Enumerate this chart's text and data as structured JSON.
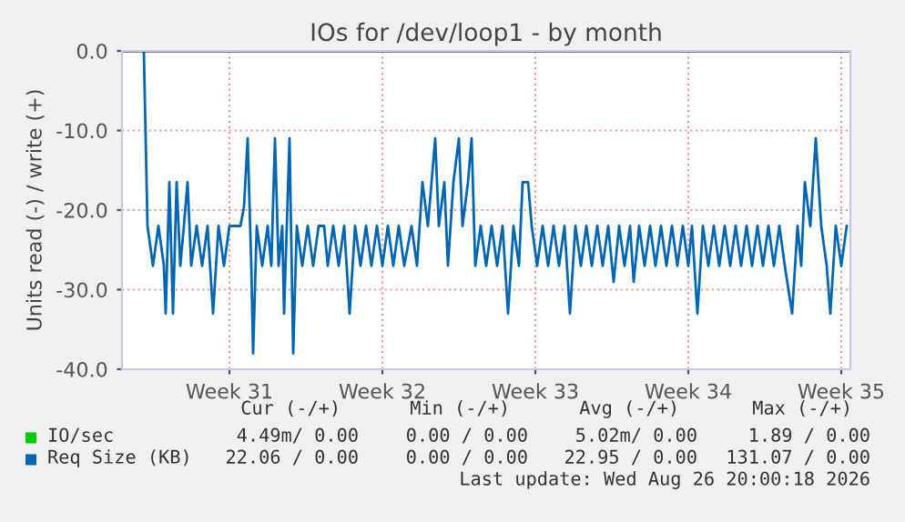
{
  "chart_data": {
    "type": "line",
    "title": "IOs for /dev/loop1 - by month",
    "ylabel": "Units read (-) / write (+)",
    "xlim": [
      "2026-07-22T02:00",
      "2026-08-24T10:00"
    ],
    "ylim": [
      -40,
      0
    ],
    "xticks": [
      {
        "value": "2026-07-27",
        "label": "Week 31"
      },
      {
        "value": "2026-08-03",
        "label": "Week 32"
      },
      {
        "value": "2026-08-10",
        "label": "Week 33"
      },
      {
        "value": "2026-08-17",
        "label": "Week 34"
      },
      {
        "value": "2026-08-24",
        "label": "Week 35"
      }
    ],
    "yticks": [
      {
        "value": -40,
        "label": "-40.0"
      },
      {
        "value": -30,
        "label": "-30.0"
      },
      {
        "value": -20,
        "label": "-20.0"
      },
      {
        "value": -10,
        "label": "-10.0"
      },
      {
        "value": 0,
        "label": "0.0"
      }
    ],
    "grid": true,
    "legend": "bottom",
    "ref_lines": [
      {
        "axis": "y",
        "value": 0,
        "color": "#000000"
      }
    ],
    "annotations": [
      "Cur (-/+)",
      "Min (-/+)",
      "Avg (-/+)",
      "Max (-/+)",
      "4.49m/ 0.00",
      "0.00 / 0.00",
      "5.02m/ 0.00",
      "1.89 / 0.00",
      "22.06 / 0.00",
      "0.00 / 0.00",
      "22.95 / 0.00",
      "131.07 / 0.00",
      "Last update: Wed Aug 26 20:00:18 2026"
    ],
    "series": [
      {
        "name": "IO/sec",
        "color": "#00cc00"
      },
      {
        "name": "Req Size (KB)",
        "color": "#0066b3",
        "x": [
          "2026-07-23T02:00",
          "2026-07-23T06:00",
          "2026-07-23T12:00",
          "2026-07-23T18:00",
          "2026-07-24T00:00",
          "2026-07-24T02:00",
          "2026-07-24T06:00",
          "2026-07-24T10:00",
          "2026-07-24T14:00",
          "2026-07-24T18:00",
          "2026-07-24T22:00",
          "2026-07-25T02:00",
          "2026-07-25T06:00",
          "2026-07-25T12:00",
          "2026-07-25T18:00",
          "2026-07-26T00:00",
          "2026-07-26T06:00",
          "2026-07-26T12:00",
          "2026-07-26T18:00",
          "2026-07-27T00:00",
          "2026-07-27T06:00",
          "2026-07-27T12:00",
          "2026-07-27T16:00",
          "2026-07-27T20:00",
          "2026-07-28T00:00",
          "2026-07-28T02:00",
          "2026-07-28T06:00",
          "2026-07-28T12:00",
          "2026-07-28T18:00",
          "2026-07-28T22:00",
          "2026-07-29T02:00",
          "2026-07-29T06:00",
          "2026-07-29T10:00",
          "2026-07-29T12:00",
          "2026-07-29T18:00",
          "2026-07-29T22:00",
          "2026-07-30T02:00",
          "2026-07-30T08:00",
          "2026-07-30T14:00",
          "2026-07-30T20:00",
          "2026-07-31T02:00",
          "2026-07-31T08:00",
          "2026-07-31T12:00",
          "2026-07-31T18:00",
          "2026-08-01T00:00",
          "2026-08-01T06:00",
          "2026-08-01T12:00",
          "2026-08-01T18:00",
          "2026-08-02T00:00",
          "2026-08-02T06:00",
          "2026-08-02T12:00",
          "2026-08-02T18:00",
          "2026-08-03T00:00",
          "2026-08-03T06:00",
          "2026-08-03T12:00",
          "2026-08-03T18:00",
          "2026-08-04T00:00",
          "2026-08-04T08:00",
          "2026-08-04T14:00",
          "2026-08-04T20:00",
          "2026-08-05T02:00",
          "2026-08-05T06:00",
          "2026-08-05T10:00",
          "2026-08-05T14:00",
          "2026-08-05T20:00",
          "2026-08-06T00:00",
          "2026-08-06T06:00",
          "2026-08-06T12:00",
          "2026-08-06T16:00",
          "2026-08-06T22:00",
          "2026-08-07T02:00",
          "2026-08-07T06:00",
          "2026-08-07T12:00",
          "2026-08-07T18:00",
          "2026-08-08T00:00",
          "2026-08-08T06:00",
          "2026-08-08T12:00",
          "2026-08-08T18:00",
          "2026-08-09T00:00",
          "2026-08-09T06:00",
          "2026-08-09T10:00",
          "2026-08-09T16:00",
          "2026-08-09T20:00",
          "2026-08-10T02:00",
          "2026-08-10T08:00",
          "2026-08-10T14:00",
          "2026-08-10T20:00",
          "2026-08-11T02:00",
          "2026-08-11T08:00",
          "2026-08-11T14:00",
          "2026-08-11T20:00",
          "2026-08-12T02:00",
          "2026-08-12T08:00",
          "2026-08-12T14:00",
          "2026-08-12T20:00",
          "2026-08-13T02:00",
          "2026-08-13T08:00",
          "2026-08-13T14:00",
          "2026-08-13T20:00",
          "2026-08-14T02:00",
          "2026-08-14T08:00",
          "2026-08-14T12:00",
          "2026-08-14T18:00",
          "2026-08-15T00:00",
          "2026-08-15T06:00",
          "2026-08-15T12:00",
          "2026-08-15T18:00",
          "2026-08-16T00:00",
          "2026-08-16T06:00",
          "2026-08-16T12:00",
          "2026-08-16T18:00",
          "2026-08-17T00:00",
          "2026-08-17T04:00",
          "2026-08-17T10:00",
          "2026-08-17T16:00",
          "2026-08-17T22:00",
          "2026-08-18T04:00",
          "2026-08-18T10:00",
          "2026-08-18T16:00",
          "2026-08-18T22:00",
          "2026-08-19T04:00",
          "2026-08-19T10:00",
          "2026-08-19T16:00",
          "2026-08-19T22:00",
          "2026-08-20T04:00",
          "2026-08-20T10:00",
          "2026-08-20T16:00",
          "2026-08-20T22:00",
          "2026-08-21T04:00",
          "2026-08-21T10:00",
          "2026-08-21T18:00",
          "2026-08-22T00:00",
          "2026-08-22T04:00",
          "2026-08-22T08:00",
          "2026-08-22T14:00",
          "2026-08-22T20:00",
          "2026-08-23T02:00",
          "2026-08-23T08:00",
          "2026-08-23T12:00",
          "2026-08-23T18:00",
          "2026-08-24T00:00",
          "2026-08-24T06:00"
        ],
        "values": [
          0,
          -22,
          -27,
          -22,
          -27,
          -33,
          -16.5,
          -33,
          -16.5,
          -27,
          -22,
          -16.5,
          -27,
          -22,
          -27,
          -22,
          -33,
          -22,
          -27,
          -22,
          -22,
          -22,
          -19.6,
          -11,
          -27,
          -38,
          -22,
          -27,
          -22,
          -27,
          -11,
          -27,
          -22,
          -33,
          -11,
          -38,
          -22,
          -27,
          -22,
          -27,
          -22,
          -22,
          -27,
          -22,
          -27,
          -22,
          -33,
          -22,
          -27,
          -22,
          -27,
          -22,
          -27,
          -22,
          -27,
          -22,
          -27,
          -22,
          -27,
          -16.5,
          -22,
          -16.5,
          -11,
          -22,
          -16.5,
          -27,
          -16.5,
          -11,
          -22,
          -16.5,
          -11,
          -27,
          -22,
          -27,
          -22,
          -27,
          -22,
          -33,
          -22,
          -27,
          -16.5,
          -16.5,
          -22,
          -27,
          -22,
          -27,
          -22,
          -27,
          -22,
          -33,
          -22,
          -27,
          -22,
          -27,
          -22,
          -27,
          -22,
          -29,
          -22,
          -27,
          -22,
          -29,
          -22,
          -27,
          -22,
          -27,
          -22,
          -27,
          -22,
          -27,
          -22,
          -27,
          -22,
          -33,
          -22,
          -27,
          -22,
          -27,
          -22,
          -27,
          -22,
          -27,
          -22,
          -27,
          -22,
          -27,
          -22,
          -27,
          -22,
          -27,
          -33,
          -22,
          -27,
          -16.5,
          -22,
          -11,
          -22,
          -27,
          -33,
          -22,
          -27,
          -22
        ]
      }
    ]
  }
}
